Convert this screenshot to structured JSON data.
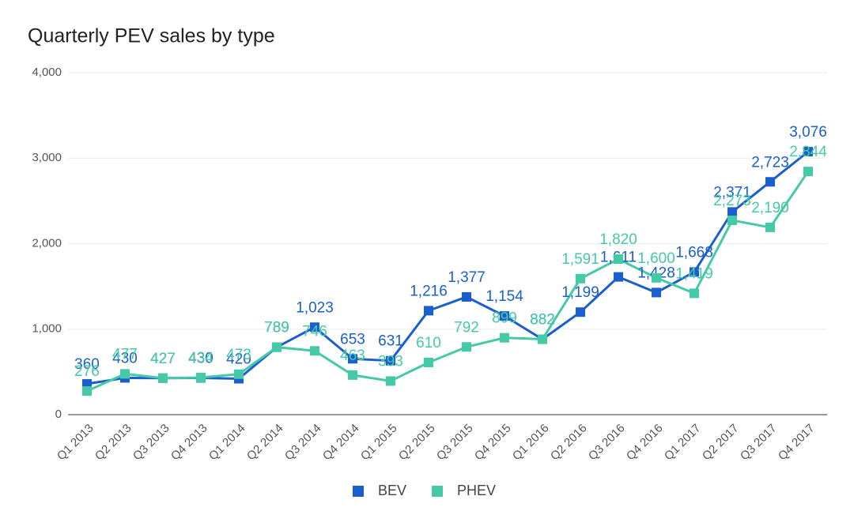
{
  "chart_data": {
    "type": "line",
    "title": "Quarterly PEV sales by type",
    "categories": [
      "Q1 2013",
      "Q2 2013",
      "Q3 2013",
      "Q4 2013",
      "Q1 2014",
      "Q2 2014",
      "Q3 2014",
      "Q4 2014",
      "Q1 2015",
      "Q2 2015",
      "Q3 2015",
      "Q4 2015",
      "Q1 2016",
      "Q2 2016",
      "Q3 2016",
      "Q4 2016",
      "Q1 2017",
      "Q2 2017",
      "Q3 2017",
      "Q4 2017"
    ],
    "series": [
      {
        "name": "BEV",
        "color": "#1a5fcc",
        "values": [
          360,
          430,
          427,
          430,
          420,
          789,
          1023,
          653,
          631,
          1216,
          1377,
          1154,
          882,
          1199,
          1611,
          1428,
          1668,
          2371,
          2723,
          3076
        ],
        "value_labels": [
          "360",
          "430",
          "427",
          "430",
          "420",
          "789",
          "1,023",
          "653",
          "631",
          "1,216",
          "1,377",
          "1,154",
          "882",
          "1,199",
          "1,611",
          "1,428",
          "1,668",
          "2,371",
          "2,723",
          "3,076"
        ]
      },
      {
        "name": "PHEV",
        "color": "#46c9a7",
        "values": [
          276,
          477,
          427,
          434,
          473,
          789,
          746,
          463,
          393,
          610,
          792,
          899,
          882,
          1591,
          1820,
          1600,
          1419,
          2273,
          2190,
          2844
        ],
        "value_labels": [
          "276",
          "477",
          "427",
          "434",
          "473",
          "789",
          "746",
          "463",
          "393",
          "610",
          "792",
          "899",
          "882",
          "1,591",
          "1,820",
          "1,600",
          "1,419",
          "2,273",
          "2,190",
          "2,844"
        ]
      }
    ],
    "ylim": [
      0,
      4000
    ],
    "yticks": [
      0,
      {
        "value": 1000,
        "label": "1,000"
      },
      {
        "value": 2000,
        "label": "2,000"
      },
      {
        "value": 3000,
        "label": "3,000"
      },
      {
        "value": 4000,
        "label": "4,000"
      }
    ],
    "grid": true,
    "legend": "bottom"
  }
}
